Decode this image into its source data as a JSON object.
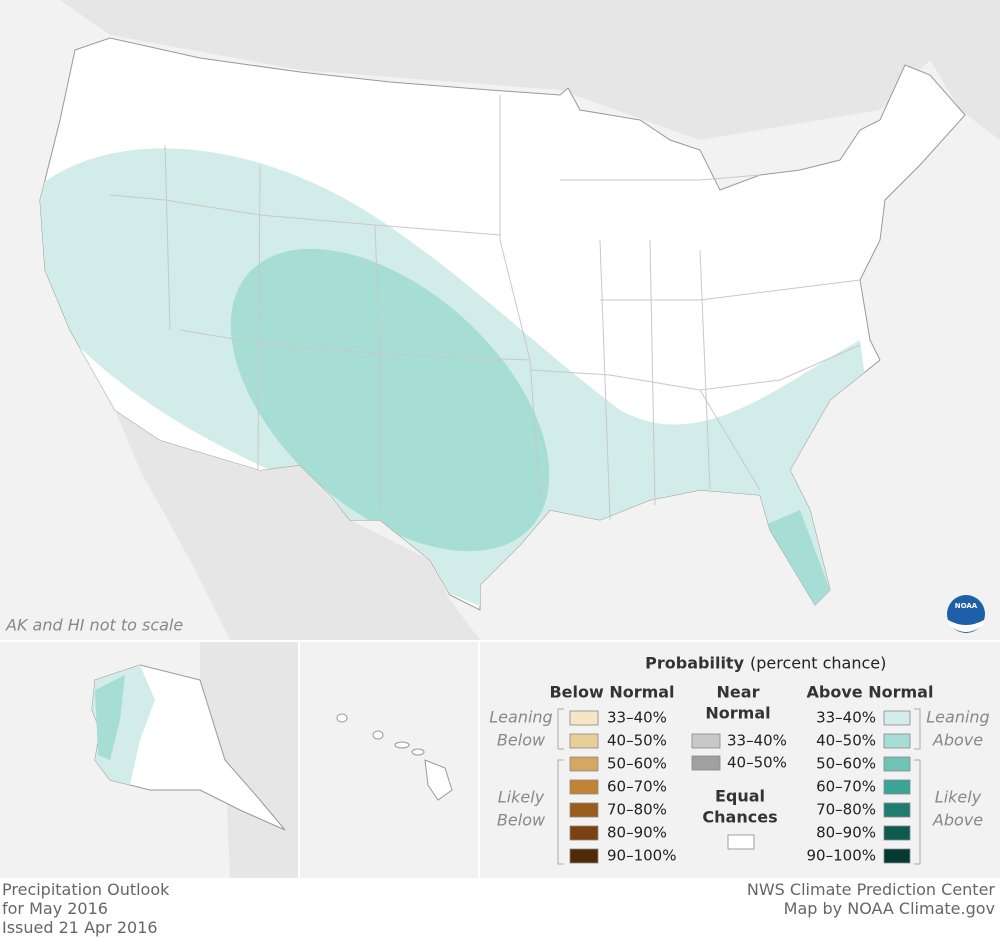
{
  "map_note": "AK and HI not to scale",
  "logo": "NOAA",
  "legend": {
    "title": "Probability",
    "title_note": "(percent chance)",
    "below": {
      "heading": "Below Normal",
      "groups": [
        {
          "lines": [
            "Leaning",
            "Below"
          ]
        },
        {
          "lines": [
            "Likely",
            "Below"
          ]
        }
      ],
      "items": [
        {
          "label": "33–40%",
          "color": "#f5e6c8"
        },
        {
          "label": "40–50%",
          "color": "#e8cf98"
        },
        {
          "label": "50–60%",
          "color": "#d4a860"
        },
        {
          "label": "60–70%",
          "color": "#c08434"
        },
        {
          "label": "70–80%",
          "color": "#9a5c1c"
        },
        {
          "label": "80–90%",
          "color": "#7a4210"
        },
        {
          "label": "90–100%",
          "color": "#4e2a08"
        }
      ]
    },
    "near": {
      "heading": [
        "Near",
        "Normal"
      ],
      "items": [
        {
          "label": "33–40%",
          "color": "#c8c8c8"
        },
        {
          "label": "40–50%",
          "color": "#a0a0a0"
        }
      ]
    },
    "equal": {
      "heading": [
        "Equal",
        "Chances"
      ],
      "color": "#ffffff"
    },
    "above": {
      "heading": "Above Normal",
      "groups": [
        {
          "lines": [
            "Leaning",
            "Above"
          ]
        },
        {
          "lines": [
            "Likely",
            "Above"
          ]
        }
      ],
      "items": [
        {
          "label": "33–40%",
          "color": "#d2ede9"
        },
        {
          "label": "40–50%",
          "color": "#a6ddd4"
        },
        {
          "label": "50–60%",
          "color": "#6fc3b6"
        },
        {
          "label": "60–70%",
          "color": "#3aa596"
        },
        {
          "label": "70–80%",
          "color": "#1f7d70"
        },
        {
          "label": "80–90%",
          "color": "#0f5a4f"
        },
        {
          "label": "90–100%",
          "color": "#053a32"
        }
      ]
    }
  },
  "footer": {
    "left": [
      "Precipitation Outlook",
      "for May 2016",
      "Issued 21 Apr 2016"
    ],
    "right": [
      "NWS Climate Prediction Center",
      "Map by NOAA Climate.gov"
    ]
  }
}
